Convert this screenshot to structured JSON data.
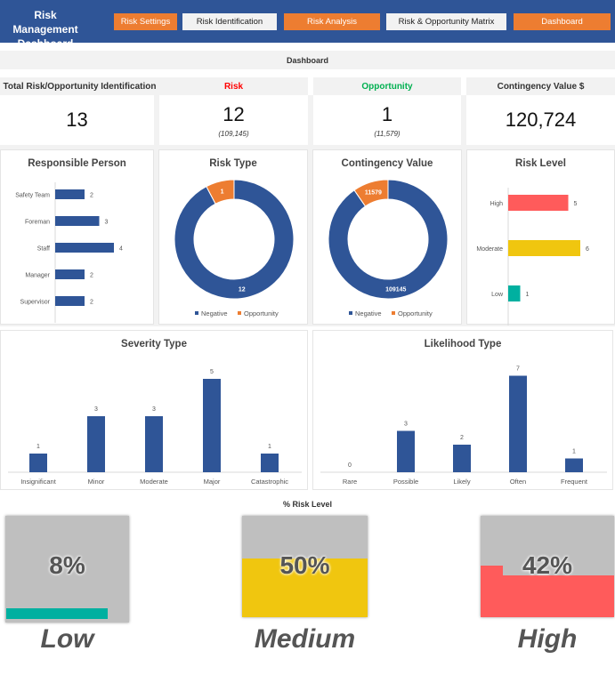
{
  "header": {
    "title": "Risk Management Dashboard",
    "nav": [
      "Risk Settings",
      "Risk Identification",
      "Risk Analysis",
      "Risk & Opportunity  Matrix",
      "Dashboard"
    ]
  },
  "section_title": "Dashboard",
  "kpis": [
    {
      "label": "Total Risk/Opportunity Identification",
      "value": "13",
      "sub": ""
    },
    {
      "label": "Risk",
      "value": "12",
      "sub": "(109,145)",
      "color": "#ff0000"
    },
    {
      "label": "Opportunity",
      "value": "1",
      "sub": "(11,579)",
      "color": "#00b050"
    },
    {
      "label": "Contingency Value $",
      "value": "120,724",
      "sub": ""
    }
  ],
  "colors": {
    "blue": "#2f5597",
    "orange": "#ed7d31",
    "red": "#ff5b5b",
    "yellow": "#f0c60f",
    "teal": "#00b0a0",
    "gray": "#bfbfbf"
  },
  "chart_data": [
    {
      "type": "bar",
      "orientation": "horizontal",
      "title": "Responsible Person",
      "categories": [
        "Safety Team",
        "Foreman",
        "Staff",
        "Manager",
        "Supervisor"
      ],
      "values": [
        2,
        3,
        4,
        2,
        2
      ]
    },
    {
      "type": "pie",
      "variant": "donut",
      "title": "Risk Type",
      "categories": [
        "Negative",
        "Opportunity"
      ],
      "values": [
        12,
        1
      ],
      "legend": "bottom"
    },
    {
      "type": "pie",
      "variant": "donut",
      "title": "Contingency Value",
      "categories": [
        "Negative",
        "Opportunity"
      ],
      "values": [
        109145,
        11579
      ],
      "legend": "bottom"
    },
    {
      "type": "bar",
      "orientation": "horizontal",
      "title": "Risk Level",
      "categories": [
        "High",
        "Moderate",
        "Low"
      ],
      "values": [
        5,
        6,
        1
      ]
    },
    {
      "type": "bar",
      "title": "Severity Type",
      "categories": [
        "Insignificant",
        "Minor",
        "Moderate",
        "Major",
        "Catastrophic"
      ],
      "values": [
        1,
        3,
        3,
        5,
        1
      ]
    },
    {
      "type": "bar",
      "title": "Likelihood Type",
      "categories": [
        "Rare",
        "Possible",
        "Likely",
        "Often",
        "Frequent"
      ],
      "values": [
        0,
        3,
        2,
        7,
        1
      ]
    }
  ],
  "risk_level": {
    "title": "% Risk Level",
    "items": [
      {
        "label": "Low",
        "pct": "8%",
        "fill": 0.08
      },
      {
        "label": "Medium",
        "pct": "50%",
        "fill": 0.5
      },
      {
        "label": "High",
        "pct": "42%",
        "fill": 0.42
      }
    ]
  }
}
